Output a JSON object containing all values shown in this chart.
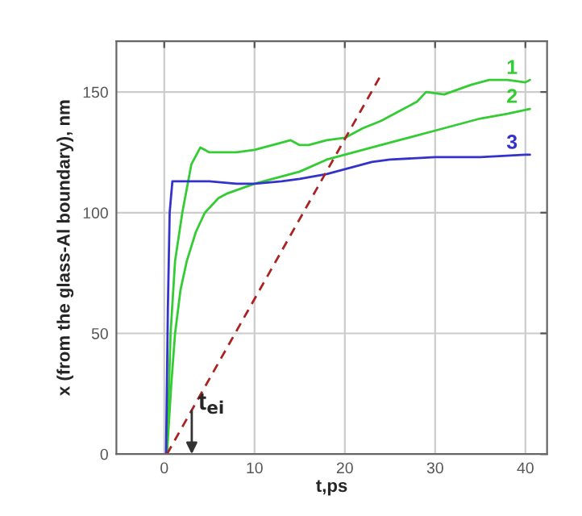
{
  "chart_data": {
    "type": "line",
    "xlabel": "t,ps",
    "ylabel": "x (from the glass-Al boundary), nm",
    "xlim": [
      -5.3,
      42.4
    ],
    "ylim": [
      0,
      171
    ],
    "xticks": [
      0,
      10,
      20,
      30,
      40
    ],
    "yticks": [
      0,
      50,
      100,
      150
    ],
    "grid": true,
    "series": [
      {
        "name": "1",
        "color": "#33cc33",
        "x": [
          0.3,
          0.7,
          1.2,
          2,
          3,
          4,
          5,
          6,
          8,
          10,
          12,
          14,
          15,
          16,
          18,
          20,
          22,
          24,
          26,
          28,
          29,
          31,
          34,
          36,
          38,
          40,
          40.5
        ],
        "values": [
          0,
          50,
          80,
          100,
          120,
          127,
          125,
          125,
          125,
          126,
          128,
          130,
          128,
          128,
          130,
          131,
          135,
          138,
          142,
          146,
          150,
          149,
          153,
          155,
          155,
          154,
          155
        ]
      },
      {
        "name": "2",
        "color": "#33cc33",
        "x": [
          0.3,
          0.8,
          1.2,
          1.8,
          2.5,
          3.5,
          4.5,
          6,
          7,
          10,
          12,
          15,
          18,
          20,
          22,
          26,
          30,
          35,
          38,
          40.5
        ],
        "values": [
          0,
          30,
          50,
          68,
          80,
          92,
          100,
          106,
          108,
          112,
          114,
          117,
          122,
          124,
          126,
          130,
          134,
          139,
          141,
          143
        ]
      },
      {
        "name": "3",
        "color": "#3333cc",
        "x": [
          0.2,
          0.4,
          0.6,
          0.9,
          3,
          5,
          8,
          10,
          13,
          15,
          18,
          20,
          23,
          25,
          30,
          35,
          40,
          40.5
        ],
        "values": [
          0,
          60,
          100,
          113,
          113,
          113,
          112,
          112,
          113,
          114,
          116,
          118,
          121,
          122,
          123,
          123,
          124,
          124
        ]
      },
      {
        "color": "#aa2222",
        "line_style": "dashed",
        "x": [
          0.3,
          24
        ],
        "values": [
          0,
          157
        ]
      }
    ],
    "annotations": [
      "t$_{ei}$"
    ]
  }
}
